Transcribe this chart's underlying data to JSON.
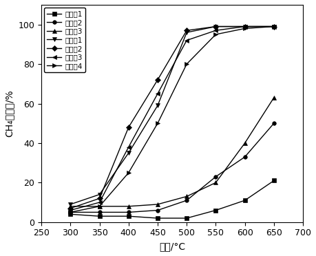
{
  "title": "",
  "xlabel": "温度/°C",
  "ylabel": "CH₄转化率/%",
  "xlim": [
    250,
    700
  ],
  "ylim": [
    0,
    110
  ],
  "xticks": [
    250,
    300,
    350,
    400,
    450,
    500,
    550,
    600,
    650,
    700
  ],
  "yticks": [
    0,
    20,
    40,
    60,
    80,
    100
  ],
  "series": [
    {
      "label": "对比例1",
      "marker": "s",
      "x": [
        300,
        350,
        400,
        450,
        500,
        550,
        600,
        650
      ],
      "y": [
        4,
        3,
        3,
        2,
        2,
        6,
        11,
        21
      ]
    },
    {
      "label": "对比例2",
      "marker": "o",
      "x": [
        300,
        350,
        400,
        450,
        500,
        550,
        600,
        650
      ],
      "y": [
        5,
        5,
        5,
        6,
        11,
        23,
        33,
        50
      ]
    },
    {
      "label": "对比例3",
      "marker": "^",
      "x": [
        300,
        350,
        400,
        450,
        500,
        550,
        600,
        650
      ],
      "y": [
        8,
        8,
        8,
        9,
        13,
        20,
        40,
        63
      ]
    },
    {
      "label": "实施例1",
      "marker": "v",
      "x": [
        300,
        350,
        400,
        450,
        500,
        550,
        600,
        650
      ],
      "y": [
        9,
        14,
        35,
        59,
        96,
        99,
        99,
        99
      ]
    },
    {
      "label": "实施例2",
      "marker": "D",
      "x": [
        300,
        350,
        400,
        450,
        500,
        550,
        600,
        650
      ],
      "y": [
        7,
        12,
        48,
        72,
        97,
        99,
        99,
        99
      ]
    },
    {
      "label": "实施例3",
      "marker": "<",
      "x": [
        300,
        350,
        400,
        450,
        500,
        550,
        600,
        650
      ],
      "y": [
        6,
        10,
        38,
        65,
        92,
        97,
        99,
        99
      ]
    },
    {
      "label": "实施例4",
      "marker": ">",
      "x": [
        300,
        350,
        400,
        450,
        500,
        550,
        600,
        650
      ],
      "y": [
        5,
        8,
        25,
        50,
        80,
        95,
        98,
        99
      ]
    }
  ],
  "line_color": "#000000",
  "figsize": [
    4.59,
    3.72
  ],
  "dpi": 100,
  "legend_fontsize": 7.5,
  "axis_fontsize": 10,
  "tick_fontsize": 9
}
